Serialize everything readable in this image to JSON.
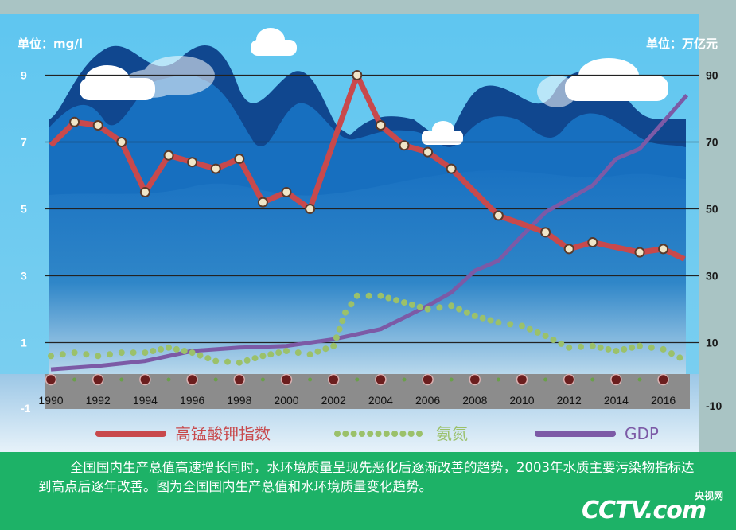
{
  "chart_data": {
    "type": "line",
    "left_unit": "单位：mg/l",
    "right_unit": "单位：万亿元",
    "y_left": {
      "ticks": [
        9,
        7,
        5,
        3,
        1,
        -1
      ],
      "range": [
        -1,
        10
      ]
    },
    "y_right": {
      "ticks": [
        90,
        70,
        50,
        30,
        10,
        -10
      ],
      "range": [
        -10,
        100
      ]
    },
    "x_ticks": [
      "1990",
      "1992",
      "1994",
      "1996",
      "1998",
      "2000",
      "2002",
      "2004",
      "2006",
      "2008",
      "2010",
      "2012",
      "2014",
      "2016"
    ],
    "series": [
      {
        "name": "高锰酸钾指数",
        "axis": "left",
        "color": "#c8494c",
        "x": [
          1990,
          1991,
          1992,
          1993,
          1994,
          1995,
          1996,
          1997,
          1998,
          1999,
          2000,
          2001,
          2003,
          2004,
          2005,
          2006,
          2007,
          2009,
          2011,
          2012,
          2013,
          2015,
          2016,
          2016.9
        ],
        "y": [
          6.9,
          7.6,
          7.5,
          7.0,
          5.5,
          6.6,
          6.4,
          6.2,
          6.5,
          5.2,
          5.5,
          5.0,
          9.0,
          7.5,
          6.9,
          6.7,
          6.2,
          4.8,
          4.3,
          3.8,
          4.0,
          3.7,
          3.8,
          3.5
        ]
      },
      {
        "name": "氨氮",
        "axis": "left",
        "color": "#9bc16a",
        "x": [
          1990,
          1991,
          1992,
          1993,
          1994,
          1995,
          1996,
          1997,
          1998,
          1999,
          2000,
          2001,
          2002,
          2002.5,
          2003,
          2004,
          2005,
          2006,
          2007,
          2008,
          2009,
          2010,
          2011,
          2012,
          2013,
          2014,
          2015,
          2016,
          2016.7
        ],
        "y": [
          0.6,
          0.7,
          0.6,
          0.7,
          0.7,
          0.85,
          0.7,
          0.45,
          0.4,
          0.6,
          0.75,
          0.65,
          0.9,
          1.9,
          2.4,
          2.4,
          2.2,
          2.0,
          2.1,
          1.8,
          1.6,
          1.5,
          1.2,
          0.85,
          0.9,
          0.75,
          0.9,
          0.8,
          0.55
        ]
      },
      {
        "name": "GDP",
        "axis": "right",
        "color": "#7c5aa6",
        "x": [
          1990,
          1992,
          1994,
          1996,
          1998,
          2000,
          2002,
          2004,
          2006,
          2007,
          2008,
          2009,
          2010,
          2011,
          2012,
          2013,
          2014,
          2015,
          2016,
          2017
        ],
        "y": [
          2,
          3,
          4.5,
          7.5,
          8.5,
          9,
          11,
          14,
          21,
          25,
          31.5,
          34.5,
          42,
          49,
          53,
          57,
          65,
          68,
          76,
          84
        ]
      }
    ],
    "legend": {
      "placement": "bottom"
    }
  },
  "caption": "全国国内生产总值高速增长同时，水环境质量呈现先恶化后逐渐改善的趋势，2003年水质主要污染物指标达到高点后逐年改善。图为全国国内生产总值和水环境质量变化趋势。",
  "logo": {
    "main": "CCTV.com",
    "top": "央视网"
  },
  "colors": {
    "panel": "#5bc3ee",
    "mountain_dark": "#10478f",
    "mountain_mid": "#176fbf",
    "axis_band": "#8c8c8c",
    "caption_bg": "#1db267"
  }
}
